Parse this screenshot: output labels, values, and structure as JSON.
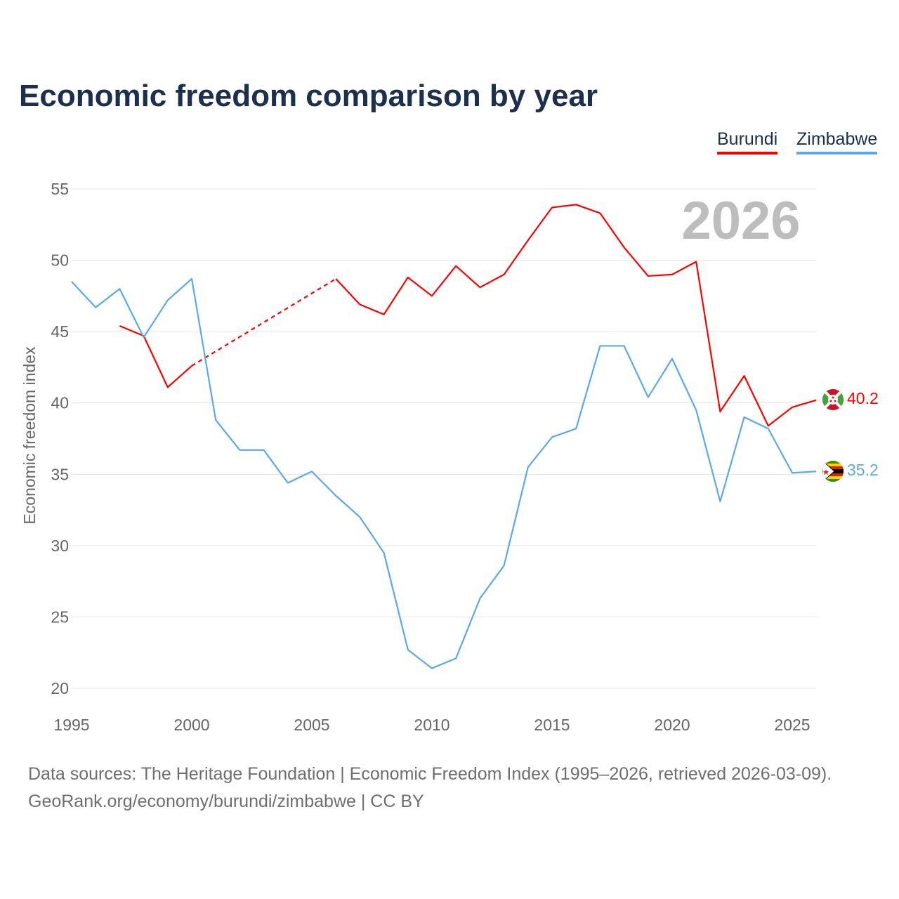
{
  "title": "Economic freedom comparison by year",
  "legend": [
    {
      "name": "Burundi",
      "color": "#ff0000"
    },
    {
      "name": "Zimbabwe",
      "color": "#5ba8ec"
    }
  ],
  "footer": {
    "line1": "Data sources: The Heritage Foundation | Economic Freedom Index (1995–2026, retrieved 2026-03-09).",
    "line2": "GeoRank.org/economy/burundi/zimbabwe | CC BY"
  },
  "chart_data": {
    "type": "line",
    "title": "Economic freedom comparison by year",
    "xlabel": "",
    "ylabel": "Economic freedom index",
    "xlim": [
      1995,
      2026
    ],
    "ylim": [
      20,
      55
    ],
    "xticks": [
      1995,
      2000,
      2005,
      2010,
      2015,
      2020,
      2025
    ],
    "yticks": [
      20,
      25,
      30,
      35,
      40,
      45,
      50,
      55
    ],
    "grid": true,
    "legend_position": "top-right",
    "year_watermark": "2026",
    "series": [
      {
        "name": "Burundi",
        "color": "#ff0000",
        "end_label": "40.2",
        "note": "dashed interpolation 2000–2006 (missing data)",
        "x": [
          1997,
          1998,
          1999,
          2000,
          2006,
          2007,
          2008,
          2009,
          2010,
          2011,
          2012,
          2013,
          2014,
          2015,
          2016,
          2017,
          2018,
          2019,
          2020,
          2021,
          2022,
          2023,
          2024,
          2025,
          2026
        ],
        "values": [
          45.4,
          44.7,
          41.1,
          42.6,
          48.7,
          46.9,
          46.2,
          48.8,
          47.5,
          49.6,
          48.1,
          49.0,
          51.4,
          53.7,
          53.9,
          53.3,
          50.9,
          48.9,
          49.0,
          49.9,
          39.4,
          41.9,
          38.4,
          39.7,
          40.2
        ]
      },
      {
        "name": "Zimbabwe",
        "color": "#5ba8ec",
        "end_label": "35.2",
        "x": [
          1995,
          1996,
          1997,
          1998,
          1999,
          2000,
          2001,
          2002,
          2003,
          2004,
          2005,
          2006,
          2007,
          2008,
          2009,
          2010,
          2011,
          2012,
          2013,
          2014,
          2015,
          2016,
          2017,
          2018,
          2019,
          2020,
          2021,
          2022,
          2023,
          2024,
          2025,
          2026
        ],
        "values": [
          48.5,
          46.7,
          48.0,
          44.6,
          47.2,
          48.7,
          38.8,
          36.7,
          36.7,
          34.4,
          35.2,
          33.5,
          32.0,
          29.5,
          22.7,
          21.4,
          22.1,
          26.3,
          28.6,
          35.5,
          37.6,
          38.2,
          44.0,
          44.0,
          40.4,
          43.1,
          39.5,
          33.1,
          39.0,
          38.2,
          35.1,
          35.2
        ]
      }
    ]
  }
}
